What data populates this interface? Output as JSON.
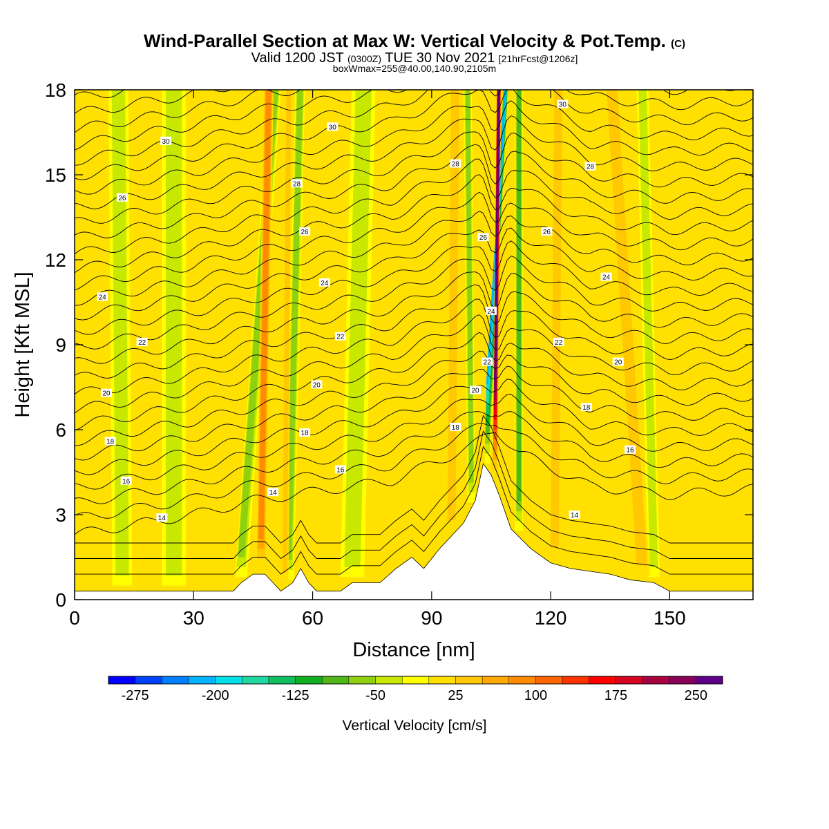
{
  "title": {
    "main": "Wind-Parallel Section at Max W: Vertical Velocity & Pot.Temp.",
    "copyright": "(C)",
    "valid_a": "Valid 1200 JST",
    "valid_b": "(0300Z)",
    "valid_c": "TUE 30 Nov 2021",
    "valid_d": "[21hrFcst@1206z]",
    "box": "boxWmax=255@40.00,140.90,2105m"
  },
  "chart_data": {
    "type": "heatmap",
    "xlabel": "Distance [nm]",
    "ylabel": "Height [Kft MSL]",
    "xlim": [
      0,
      171
    ],
    "ylim": [
      0,
      18
    ],
    "xticks": [
      0,
      30,
      60,
      90,
      120,
      150
    ],
    "yticks": [
      0,
      3,
      6,
      9,
      12,
      15,
      18
    ],
    "grid": false,
    "colorbar": {
      "label": "Vertical Velocity [cm/s]",
      "min": -300,
      "step": 25,
      "tick_labels": [
        "-275",
        "-200",
        "-125",
        "-50",
        "25",
        "100",
        "175",
        "250"
      ],
      "colors": [
        "#0000ff",
        "#0040ff",
        "#0080ff",
        "#00b4ff",
        "#00e0e8",
        "#20d8a0",
        "#10c060",
        "#10b020",
        "#50b818",
        "#90d010",
        "#c8e800",
        "#ffff00",
        "#ffe000",
        "#ffc800",
        "#ffa800",
        "#ff8c00",
        "#ff6600",
        "#ff3300",
        "#ff0000",
        "#d80020",
        "#a80040",
        "#880058",
        "#600088"
      ]
    },
    "terrain": [
      [
        0,
        0.3
      ],
      [
        40,
        0.3
      ],
      [
        42,
        0.6
      ],
      [
        45,
        0.9
      ],
      [
        48,
        0.9
      ],
      [
        50,
        0.6
      ],
      [
        52,
        0.3
      ],
      [
        55,
        0.6
      ],
      [
        57,
        1.1
      ],
      [
        59,
        0.6
      ],
      [
        61,
        0.3
      ],
      [
        67,
        0.3
      ],
      [
        70,
        0.6
      ],
      [
        77,
        0.6
      ],
      [
        81,
        1.1
      ],
      [
        85,
        1.5
      ],
      [
        88,
        1.1
      ],
      [
        92,
        1.8
      ],
      [
        98,
        2.7
      ],
      [
        101,
        3.5
      ],
      [
        103,
        4.8
      ],
      [
        105,
        4.4
      ],
      [
        107,
        3.7
      ],
      [
        110,
        2.5
      ],
      [
        115,
        1.8
      ],
      [
        120,
        1.3
      ],
      [
        125,
        1.1
      ],
      [
        135,
        0.9
      ],
      [
        140,
        0.7
      ],
      [
        146,
        0.6
      ],
      [
        150,
        0.3
      ],
      [
        171,
        0.3
      ]
    ],
    "updrafts": [
      {
        "x_sfc": 106,
        "x_top": 107,
        "h": 4.5,
        "width": 1.2,
        "w": 255
      },
      {
        "x_sfc": 47,
        "x_top": 49,
        "h": 2,
        "width": 2.5,
        "w": 90
      },
      {
        "x_sfc": 53,
        "x_top": 54,
        "h": 1.5,
        "width": 1.8,
        "w": 45
      },
      {
        "x_sfc": 95,
        "x_top": 96,
        "h": 3,
        "width": 3,
        "w": 50
      },
      {
        "x_sfc": 121,
        "x_top": 122,
        "h": 2.5,
        "width": 3,
        "w": 45
      },
      {
        "x_sfc": 143,
        "x_top": 135,
        "h": 4,
        "width": 4,
        "w": 40
      },
      {
        "x_sfc": 3,
        "x_top": 4,
        "h": 1,
        "width": 3,
        "w": 25
      },
      {
        "x_sfc": 77,
        "x_top": 82,
        "h": 3,
        "width": 4,
        "w": 25
      },
      {
        "x_sfc": 157,
        "x_top": 160,
        "h": 3,
        "width": 5,
        "w": 25
      }
    ],
    "downdrafts": [
      {
        "x_sfc": 104,
        "x_top": 109,
        "h": 5,
        "width": 1.3,
        "w": -220
      },
      {
        "x_sfc": 112,
        "x_top": 112,
        "h": 2,
        "width": 2,
        "w": -90
      },
      {
        "x_sfc": 100,
        "x_top": 99,
        "h": 2,
        "width": 2,
        "w": -55
      },
      {
        "x_sfc": 42,
        "x_top": 51,
        "h": 2,
        "width": 3,
        "w": -55
      },
      {
        "x_sfc": 54,
        "x_top": 57,
        "h": 2,
        "width": 2.5,
        "w": -55
      },
      {
        "x_sfc": 146,
        "x_top": 143,
        "h": 2,
        "width": 3,
        "w": -50
      },
      {
        "x_sfc": 12,
        "x_top": 11,
        "h": 2,
        "width": 5,
        "w": -30
      },
      {
        "x_sfc": 25,
        "x_top": 25,
        "h": 2,
        "width": 6,
        "w": -30
      },
      {
        "x_sfc": 70,
        "x_top": 73,
        "h": 2,
        "width": 6,
        "w": -30
      }
    ],
    "isentrope_base": [
      [
        0,
        2.3
      ],
      [
        30,
        3.0
      ],
      [
        45,
        3.5
      ],
      [
        60,
        3.8
      ],
      [
        80,
        4.2
      ],
      [
        100,
        5.4
      ],
      [
        106,
        6.0
      ],
      [
        112,
        5.2
      ],
      [
        130,
        4.0
      ],
      [
        150,
        3.7
      ],
      [
        171,
        3.9
      ]
    ],
    "isentrope_labels": [
      {
        "text": "14",
        "x": 22,
        "y": 2.9
      },
      {
        "text": "14",
        "x": 50,
        "y": 3.8
      },
      {
        "text": "14",
        "x": 126,
        "y": 3.0
      },
      {
        "text": "16",
        "x": 13,
        "y": 4.2
      },
      {
        "text": "16",
        "x": 67,
        "y": 4.6
      },
      {
        "text": "16",
        "x": 140,
        "y": 5.3
      },
      {
        "text": "18",
        "x": 9,
        "y": 5.6
      },
      {
        "text": "18",
        "x": 58,
        "y": 5.9
      },
      {
        "text": "18",
        "x": 96,
        "y": 6.1
      },
      {
        "text": "18",
        "x": 129,
        "y": 6.8
      },
      {
        "text": "20",
        "x": 8,
        "y": 7.3
      },
      {
        "text": "20",
        "x": 61,
        "y": 7.6
      },
      {
        "text": "20",
        "x": 101,
        "y": 7.4
      },
      {
        "text": "20",
        "x": 137,
        "y": 8.4
      },
      {
        "text": "22",
        "x": 17,
        "y": 9.1
      },
      {
        "text": "22",
        "x": 67,
        "y": 9.3
      },
      {
        "text": "22",
        "x": 104,
        "y": 8.4
      },
      {
        "text": "22",
        "x": 122,
        "y": 9.1
      },
      {
        "text": "24",
        "x": 7,
        "y": 10.7
      },
      {
        "text": "24",
        "x": 63,
        "y": 11.2
      },
      {
        "text": "24",
        "x": 105,
        "y": 10.2
      },
      {
        "text": "24",
        "x": 134,
        "y": 11.4
      },
      {
        "text": "26",
        "x": 12,
        "y": 14.2
      },
      {
        "text": "26",
        "x": 58,
        "y": 13.0
      },
      {
        "text": "26",
        "x": 103,
        "y": 12.8
      },
      {
        "text": "26",
        "x": 119,
        "y": 13.0
      },
      {
        "text": "28",
        "x": 56,
        "y": 14.7
      },
      {
        "text": "28",
        "x": 96,
        "y": 15.4
      },
      {
        "text": "28",
        "x": 130,
        "y": 15.3
      },
      {
        "text": "30",
        "x": 23,
        "y": 16.2
      },
      {
        "text": "30",
        "x": 65,
        "y": 16.7
      },
      {
        "text": "30",
        "x": 123,
        "y": 17.5
      }
    ]
  }
}
